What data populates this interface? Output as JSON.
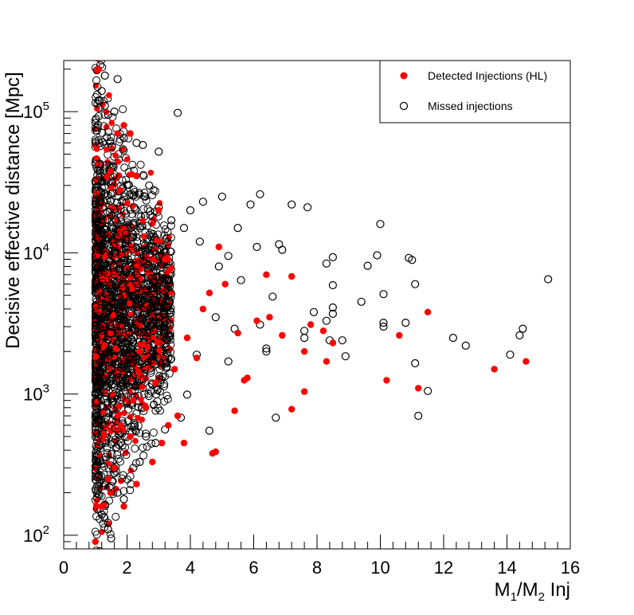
{
  "chart_data": {
    "type": "scatter",
    "title": "",
    "xlabel": "M1/M2 Inj",
    "ylabel": "Decisive effective distance [Mpc]",
    "xlim": [
      0,
      16
    ],
    "ylim": [
      80,
      230000
    ],
    "ylog": true,
    "grid": false,
    "legend_position": "top-right",
    "x_ticks": [
      "0",
      "2",
      "4",
      "6",
      "8",
      "10",
      "12",
      "14",
      "16"
    ],
    "y_ticks": [
      "10^2",
      "10^3",
      "10^4",
      "10^5"
    ],
    "series": [
      {
        "name": "Detected Injections (HL)",
        "marker": "filled-circle",
        "color": "#ff0000",
        "dense_region_note": "",
        "points": [
          [
            1.1,
            200000
          ],
          [
            1.7,
            70000
          ],
          [
            1.9,
            80000
          ],
          [
            2.1,
            70000
          ],
          [
            2.3,
            35000
          ],
          [
            3.0,
            20000
          ],
          [
            1.0,
            90
          ],
          [
            1.2,
            160
          ],
          [
            1.9,
            160
          ],
          [
            2.3,
            230
          ],
          [
            2.8,
            330
          ],
          [
            4.7,
            380
          ],
          [
            4.8,
            390
          ],
          [
            3.1,
            450
          ],
          [
            3.8,
            450
          ],
          [
            5.4,
            760
          ],
          [
            7.2,
            780
          ],
          [
            7.6,
            1040
          ],
          [
            10.2,
            1250
          ],
          [
            11.2,
            1100
          ],
          [
            13.6,
            1500
          ],
          [
            14.6,
            1700
          ],
          [
            8.3,
            1700
          ],
          [
            5.7,
            1250
          ],
          [
            5.8,
            1300
          ],
          [
            7.6,
            2000
          ],
          [
            8.5,
            2300
          ],
          [
            10.6,
            2600
          ],
          [
            8.2,
            2800
          ],
          [
            11.5,
            3800
          ],
          [
            7.8,
            3100
          ],
          [
            6.5,
            3500
          ],
          [
            7.2,
            6800
          ],
          [
            6.4,
            7000
          ],
          [
            4.9,
            11000
          ],
          [
            5.1,
            6000
          ],
          [
            4.4,
            4000
          ],
          [
            3.9,
            2500
          ],
          [
            4.2,
            1800
          ],
          [
            3.6,
            700
          ],
          [
            3.3,
            600
          ],
          [
            2.6,
            800
          ],
          [
            2.9,
            1200
          ],
          [
            3.5,
            1500
          ],
          [
            2.4,
            2000
          ],
          [
            2.1,
            500
          ],
          [
            1.6,
            300
          ],
          [
            1.4,
            250
          ],
          [
            1.8,
            600
          ],
          [
            2.2,
            900
          ],
          [
            6.1,
            3300
          ],
          [
            5.5,
            2700
          ],
          [
            6.9,
            2600
          ],
          [
            4.6,
            5200
          ],
          [
            3.2,
            9000
          ]
        ]
      },
      {
        "name": "Missed injections",
        "marker": "open-circle",
        "color": "#000000",
        "points": [
          [
            15.3,
            6500
          ],
          [
            14.1,
            1900
          ],
          [
            14.5,
            2900
          ],
          [
            14.4,
            2600
          ],
          [
            12.7,
            2200
          ],
          [
            12.3,
            2500
          ],
          [
            11.5,
            1050
          ],
          [
            11.2,
            700
          ],
          [
            11.1,
            6000
          ],
          [
            11.1,
            1650
          ],
          [
            10.9,
            9200
          ],
          [
            11.0,
            8900
          ],
          [
            10.8,
            3200
          ],
          [
            10.1,
            3200
          ],
          [
            10.1,
            3000
          ],
          [
            10.1,
            5100
          ],
          [
            9.9,
            9600
          ],
          [
            10.0,
            16000
          ],
          [
            9.6,
            8100
          ],
          [
            9.4,
            4500
          ],
          [
            8.9,
            1850
          ],
          [
            8.8,
            2400
          ],
          [
            8.5,
            4100
          ],
          [
            8.5,
            3700
          ],
          [
            8.5,
            9300
          ],
          [
            8.4,
            2400
          ],
          [
            8.3,
            3300
          ],
          [
            8.5,
            5900
          ],
          [
            8.3,
            8400
          ],
          [
            7.9,
            3800
          ],
          [
            7.7,
            21000
          ],
          [
            7.2,
            22000
          ],
          [
            7.6,
            2500
          ],
          [
            7.6,
            2800
          ],
          [
            6.7,
            680
          ],
          [
            6.4,
            2100
          ],
          [
            6.4,
            2000
          ],
          [
            6.2,
            3100
          ],
          [
            6.6,
            4900
          ],
          [
            6.8,
            11500
          ],
          [
            6.9,
            10500
          ],
          [
            6.1,
            11000
          ],
          [
            6.2,
            26000
          ],
          [
            5.9,
            22000
          ],
          [
            5.5,
            15000
          ],
          [
            5.0,
            25000
          ],
          [
            4.4,
            23000
          ],
          [
            4.0,
            20000
          ],
          [
            3.6,
            98000
          ],
          [
            2.3,
            60000
          ],
          [
            1.7,
            170000
          ],
          [
            1.3,
            180000
          ],
          [
            1.2,
            140000
          ],
          [
            1.1,
            120000
          ],
          [
            1.3,
            110000
          ],
          [
            1.6,
            100000
          ],
          [
            1.4,
            95000
          ],
          [
            1.9,
            65000
          ],
          [
            2.5,
            58000
          ],
          [
            3.0,
            52000
          ],
          [
            4.6,
            550
          ],
          [
            3.7,
            680
          ],
          [
            3.9,
            990
          ],
          [
            2.9,
            450
          ],
          [
            2.6,
            500
          ],
          [
            1.9,
            180
          ],
          [
            1.7,
            200
          ],
          [
            1.3,
            165
          ],
          [
            1.4,
            110
          ],
          [
            1.5,
            95
          ],
          [
            1.2,
            140
          ],
          [
            2.2,
            300
          ],
          [
            2.4,
            330
          ],
          [
            3.2,
            560
          ],
          [
            4.2,
            1900
          ],
          [
            5.2,
            1700
          ],
          [
            5.4,
            2900
          ],
          [
            4.8,
            3500
          ],
          [
            5.6,
            6400
          ],
          [
            4.9,
            8000
          ],
          [
            5.2,
            9500
          ],
          [
            4.3,
            12000
          ],
          [
            3.8,
            15000
          ],
          [
            3.4,
            17000
          ],
          [
            3.0,
            21000
          ],
          [
            2.7,
            30000
          ]
        ]
      }
    ]
  },
  "legend": {
    "detected_label": "Detected Injections (HL)",
    "missed_label": "Missed injections"
  },
  "axes": {
    "xlabel_main": "M",
    "xlabel_sub1": "1",
    "xlabel_mid": "/M",
    "xlabel_sub2": "2",
    "xlabel_tail": " Inj",
    "ylabel": "Decisive effective distance [Mpc]",
    "y_tick_base": "10",
    "y_tick_exps": [
      "2",
      "3",
      "4",
      "5"
    ],
    "x_tick_labels": [
      "0",
      "2",
      "4",
      "6",
      "8",
      "10",
      "12",
      "14",
      "16"
    ]
  }
}
